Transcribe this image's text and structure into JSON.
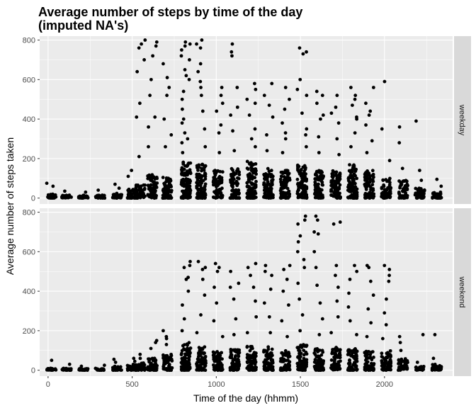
{
  "chart_data": {
    "type": "scatter",
    "title_lines": [
      "Average number of steps by time of the day",
      "(imputed NA's)"
    ],
    "xlabel": "Time of the day (hhmm)",
    "ylabel": "Average number of steps taken",
    "xlim": [
      -50,
      2405
    ],
    "ylim": [
      -30,
      820
    ],
    "x_ticks": [
      0,
      500,
      1000,
      1500,
      2000
    ],
    "y_ticks": [
      0,
      200,
      400,
      600,
      800
    ],
    "grid": true,
    "facets": [
      {
        "label": "weekday",
        "clusters": [
          {
            "x": 20,
            "base": 20,
            "outliers": [
              60,
              75
            ]
          },
          {
            "x": 110,
            "base": 15,
            "outliers": [
              35
            ]
          },
          {
            "x": 210,
            "base": 15,
            "outliers": [
              30
            ]
          },
          {
            "x": 310,
            "base": 15,
            "outliers": [
              40
            ]
          },
          {
            "x": 410,
            "base": 25,
            "outliers": [
              50,
              70
            ]
          },
          {
            "x": 500,
            "base": 45,
            "outliers": [
              140,
              110
            ]
          },
          {
            "x": 550,
            "base": 70,
            "outliers": [
              210,
              410,
              640,
              760,
              800,
              780,
              700,
              480
            ]
          },
          {
            "x": 620,
            "base": 120,
            "outliers": [
              410,
              720,
              790,
              770,
              600,
              520,
              360,
              260
            ]
          },
          {
            "x": 710,
            "base": 110,
            "outliers": [
              260,
              400,
              520,
              610,
              680,
              560,
              320
            ]
          },
          {
            "x": 820,
            "base": 190,
            "outliers": [
              300,
              400,
              450,
              500,
              540,
              600,
              650,
              700,
              750,
              780,
              790,
              770,
              720,
              620,
              380,
              330,
              280,
              230
            ]
          },
          {
            "x": 910,
            "base": 180,
            "outliers": [
              260,
              350,
              440,
              520,
              590,
              680,
              760,
              800,
              780,
              640,
              560
            ]
          },
          {
            "x": 1010,
            "base": 140,
            "outliers": [
              230,
              330,
              440,
              520,
              560,
              480,
              370
            ]
          },
          {
            "x": 1110,
            "base": 150,
            "outliers": [
              240,
              340,
              420,
              560,
              720,
              780,
              740,
              460
            ]
          },
          {
            "x": 1210,
            "base": 190,
            "outliers": [
              260,
              350,
              420,
              480,
              550,
              580,
              500,
              300
            ]
          },
          {
            "x": 1310,
            "base": 150,
            "outliers": [
              240,
              320,
              410,
              520,
              580,
              470
            ]
          },
          {
            "x": 1410,
            "base": 140,
            "outliers": [
              230,
              300,
              380,
              500,
              560,
              450,
              330
            ]
          },
          {
            "x": 1510,
            "base": 170,
            "outliers": [
              260,
              350,
              430,
              520,
              600,
              740,
              760,
              730,
              550,
              320
            ]
          },
          {
            "x": 1610,
            "base": 140,
            "outliers": [
              230,
              310,
              400,
              480,
              540,
              520,
              420
            ]
          },
          {
            "x": 1710,
            "base": 140,
            "outliers": [
              220,
              300,
              380,
              460,
              520,
              430
            ]
          },
          {
            "x": 1810,
            "base": 170,
            "outliers": [
              260,
              330,
              400,
              470,
              520,
              560,
              500,
              410
            ]
          },
          {
            "x": 1910,
            "base": 140,
            "outliers": [
              230,
              290,
              370,
              440,
              480,
              560,
              420
            ]
          },
          {
            "x": 2010,
            "base": 100,
            "outliers": [
              190,
              350,
              590
            ]
          },
          {
            "x": 2110,
            "base": 90,
            "outliers": [
              150,
              280,
              360
            ]
          },
          {
            "x": 2210,
            "base": 50,
            "outliers": [
              90,
              140,
              390
            ]
          },
          {
            "x": 2310,
            "base": 30,
            "outliers": [
              60,
              95
            ]
          }
        ]
      },
      {
        "label": "weekend",
        "clusters": [
          {
            "x": 20,
            "base": 10,
            "outliers": [
              50
            ]
          },
          {
            "x": 110,
            "base": 10,
            "outliers": [
              30
            ]
          },
          {
            "x": 210,
            "base": 8,
            "outliers": [
              20
            ]
          },
          {
            "x": 310,
            "base": 10,
            "outliers": [
              25
            ]
          },
          {
            "x": 410,
            "base": 20,
            "outliers": [
              55,
              40
            ]
          },
          {
            "x": 500,
            "base": 30,
            "outliers": [
              60,
              45
            ]
          },
          {
            "x": 550,
            "base": 40,
            "outliers": [
              80,
              60
            ]
          },
          {
            "x": 620,
            "base": 60,
            "outliers": [
              110,
              150,
              140
            ]
          },
          {
            "x": 710,
            "base": 80,
            "outliers": [
              130,
              170,
              200,
              160
            ]
          },
          {
            "x": 820,
            "base": 140,
            "outliers": [
              200,
              260,
              330,
              400,
              470,
              530,
              550,
              520,
              460
            ]
          },
          {
            "x": 910,
            "base": 120,
            "outliers": [
              190,
              280,
              380,
              460,
              520,
              550,
              510
            ]
          },
          {
            "x": 1010,
            "base": 100,
            "outliers": [
              170,
              250,
              340,
              420,
              500,
              540,
              520
            ]
          },
          {
            "x": 1110,
            "base": 110,
            "outliers": [
              180,
              260,
              360,
              440,
              500,
              420
            ]
          },
          {
            "x": 1210,
            "base": 120,
            "outliers": [
              190,
              270,
              350,
              420,
              480,
              540,
              520
            ]
          },
          {
            "x": 1310,
            "base": 120,
            "outliers": [
              190,
              270,
              340,
              410,
              480,
              530,
              500
            ]
          },
          {
            "x": 1410,
            "base": 100,
            "outliers": [
              170,
              250,
              330,
              400,
              460,
              530,
              510
            ]
          },
          {
            "x": 1510,
            "base": 130,
            "outliers": [
              200,
              280,
              360,
              440,
              520,
              600,
              680,
              760,
              780,
              740,
              650,
              560
            ]
          },
          {
            "x": 1610,
            "base": 110,
            "outliers": [
              180,
              260,
              340,
              430,
              520,
              600,
              690,
              780,
              760,
              700
            ]
          },
          {
            "x": 1710,
            "base": 120,
            "outliers": [
              190,
              270,
              350,
              420,
              480,
              530,
              740,
              750
            ]
          },
          {
            "x": 1810,
            "base": 110,
            "outliers": [
              180,
              250,
              320,
              390,
              460,
              530,
              500
            ]
          },
          {
            "x": 1910,
            "base": 100,
            "outliers": [
              170,
              240,
              310,
              380,
              450,
              520,
              530
            ]
          },
          {
            "x": 2010,
            "base": 100,
            "outliers": [
              160,
              230,
              290,
              360,
              450,
              530,
              510,
              480
            ]
          },
          {
            "x": 2110,
            "base": 60,
            "outliers": [
              100,
              140,
              170
            ]
          },
          {
            "x": 2210,
            "base": 20,
            "outliers": [
              40,
              180
            ]
          },
          {
            "x": 2310,
            "base": 30,
            "outliers": [
              60,
              180
            ]
          }
        ]
      }
    ]
  }
}
